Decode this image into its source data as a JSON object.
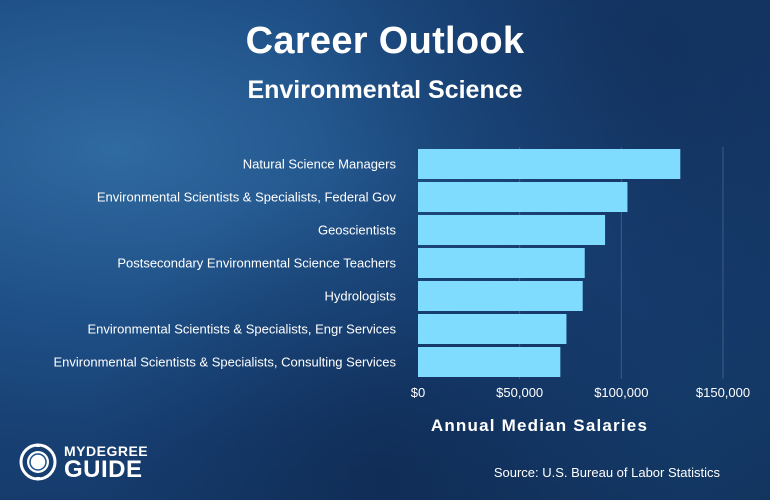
{
  "header": {
    "title": "Career Outlook",
    "subtitle": "Environmental Science"
  },
  "chart_data": {
    "type": "bar",
    "orientation": "horizontal",
    "categories": [
      "Natural Science Managers",
      "Environmental Scientists & Specialists, Federal Gov",
      "Geoscientists",
      "Postsecondary Environmental Science Teachers",
      "Hydrologists",
      "Environmental Scientists & Specialists, Engr Services",
      "Environmental Scientists & Specialists, Consulting Services"
    ],
    "values": [
      129000,
      103000,
      92000,
      82000,
      81000,
      73000,
      70000
    ],
    "xlabel": "Annual Median Salaries",
    "xlim": [
      0,
      150000
    ],
    "ticks": [
      {
        "value": 0,
        "label": "$0"
      },
      {
        "value": 50000,
        "label": "$50,000"
      },
      {
        "value": 100000,
        "label": "$100,000"
      },
      {
        "value": 150000,
        "label": "$150,000"
      }
    ],
    "bar_color": "#80dcff",
    "grid": true
  },
  "footer": {
    "source": "Source: U.S. Bureau of Labor Statistics",
    "logo_top": "MYDEGREE",
    "logo_bottom": "GUIDE"
  }
}
